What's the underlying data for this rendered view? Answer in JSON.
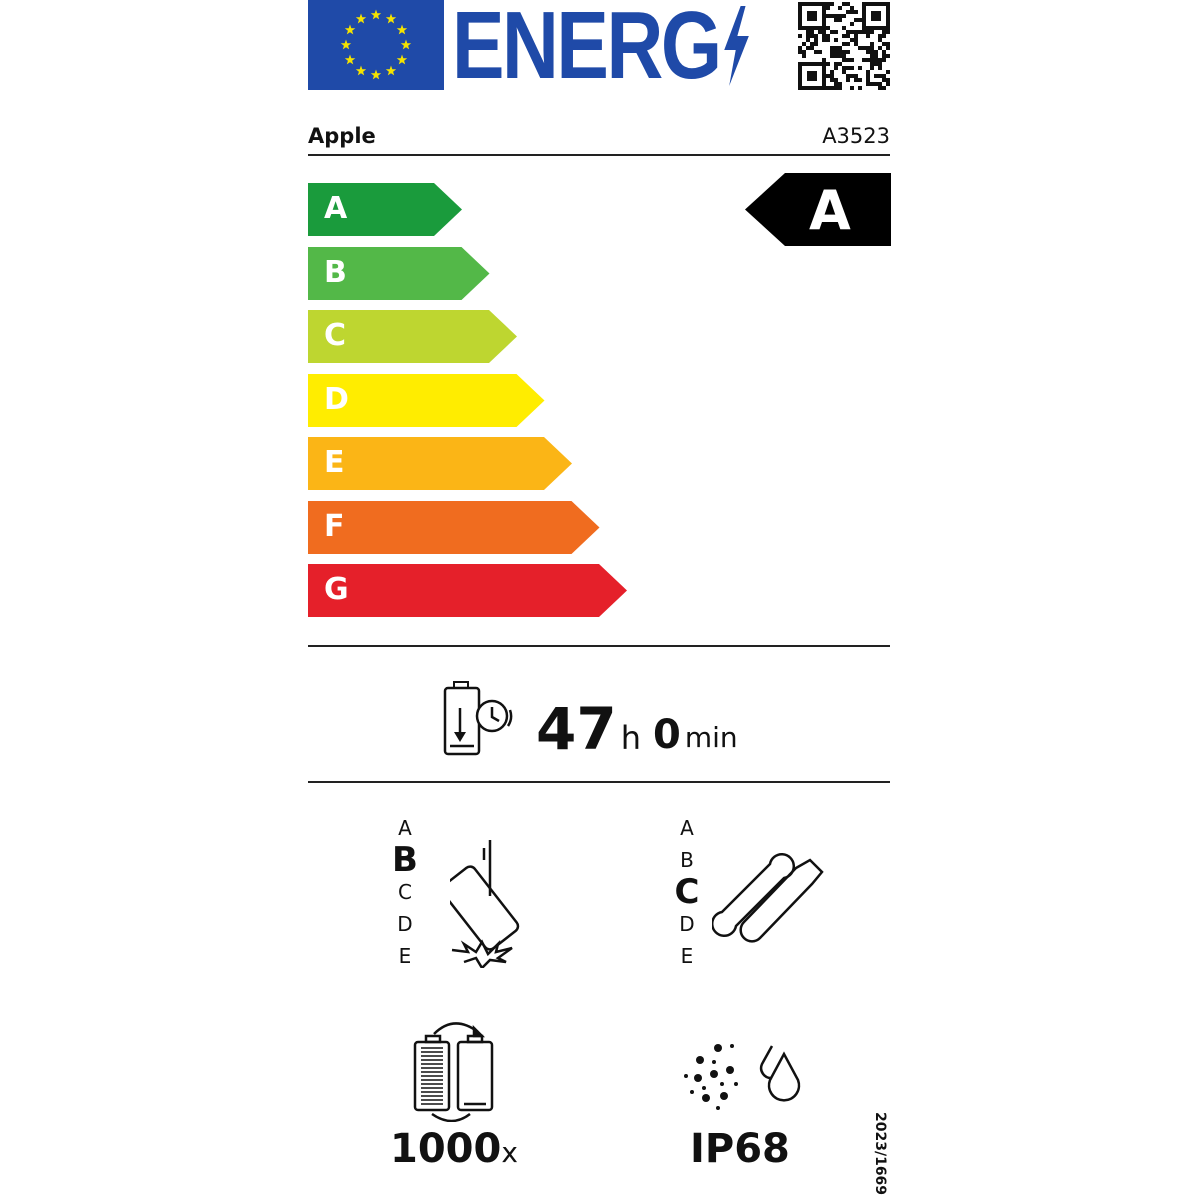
{
  "header": {
    "logo": "EU flag",
    "energy_text": "ENERG",
    "qr_code": "qr-code"
  },
  "supplier": "Apple",
  "model": "A3523",
  "scale": {
    "classes": [
      {
        "letter": "A",
        "color": "#1a9b3c"
      },
      {
        "letter": "B",
        "color": "#53b848"
      },
      {
        "letter": "C",
        "color": "#bed630"
      },
      {
        "letter": "D",
        "color": "#ffed00"
      },
      {
        "letter": "E",
        "color": "#fbb516"
      },
      {
        "letter": "F",
        "color": "#f06c1f"
      },
      {
        "letter": "G",
        "color": "#e5202a"
      }
    ],
    "rating": "A"
  },
  "battery_endurance": {
    "hours": "47",
    "hours_unit": "h",
    "minutes": "0",
    "minutes_unit": "min"
  },
  "drop_resistance": {
    "classes": [
      "A",
      "B",
      "C",
      "D",
      "E"
    ],
    "selected": "B"
  },
  "repairability": {
    "classes": [
      "A",
      "B",
      "C",
      "D",
      "E"
    ],
    "selected": "C"
  },
  "battery_cycles": {
    "value": "1000",
    "unit": "x"
  },
  "ingress_protection": "IP68",
  "regulation": "2023/1669"
}
